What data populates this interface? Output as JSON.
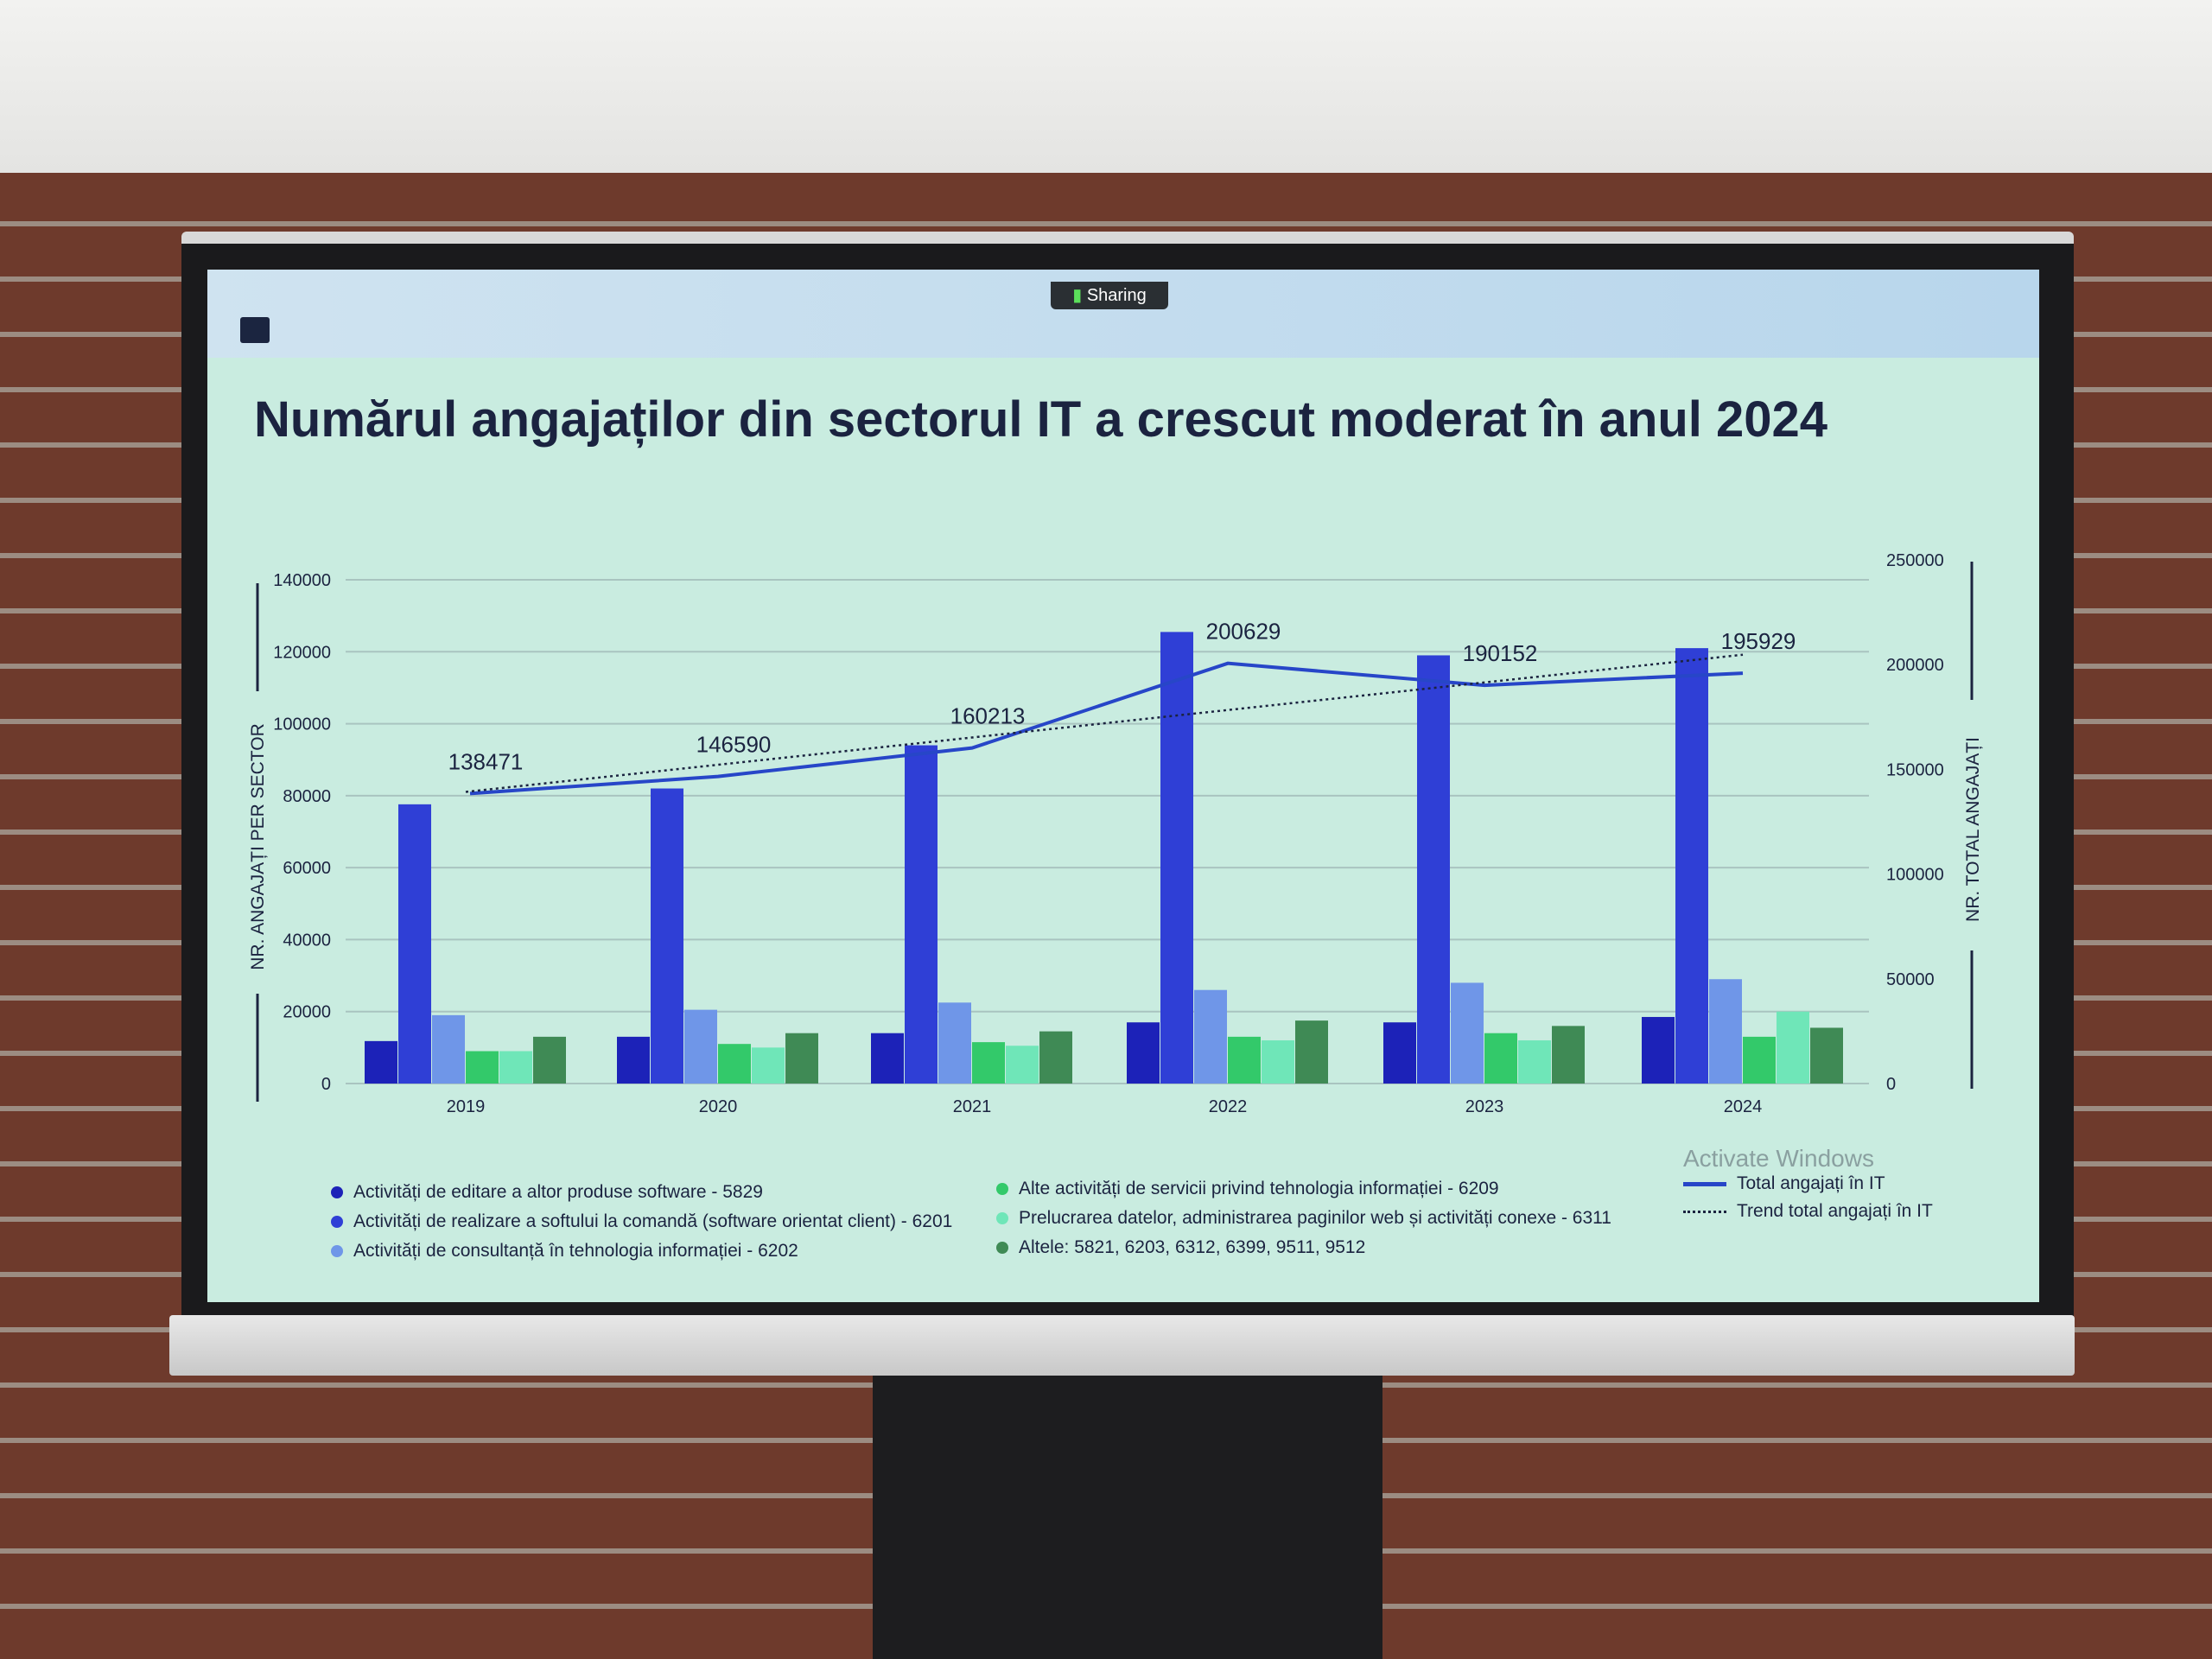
{
  "slide": {
    "sharing_label": "Sharing",
    "title": "Numărul angajaților din sectorul IT a crescut moderat în anul 2024",
    "watermark": "Activate Windows"
  },
  "chart_data": {
    "type": "bar",
    "title": "Numărul angajaților din sectorul IT a crescut moderat în anul 2024",
    "categories": [
      "2019",
      "2020",
      "2021",
      "2022",
      "2023",
      "2024"
    ],
    "ylabel": "NR. ANGAJAȚI PER SECTOR",
    "ylim": [
      0,
      140000
    ],
    "yticks": [
      "0",
      "20000",
      "40000",
      "60000",
      "80000",
      "100000",
      "120000",
      "140000"
    ],
    "y2label": "NR. TOTAL ANGAJAȚI",
    "y2lim": [
      0,
      250000
    ],
    "y2ticks": [
      "0",
      "50000",
      "100000",
      "150000",
      "200000",
      "250000"
    ],
    "grid": true,
    "series": [
      {
        "name": "Activități de editare a altor produse software - 5829",
        "color": "#1c22b8",
        "values": [
          11800,
          13000,
          14000,
          17000,
          17000,
          18500
        ]
      },
      {
        "name": "Activități de realizare a softului la comandă (software orientat client) - 6201",
        "color": "#2f3fd6",
        "values": [
          77600,
          82000,
          94000,
          125500,
          119000,
          121000
        ]
      },
      {
        "name": "Activități de consultanță în tehnologia informației - 6202",
        "color": "#6f96e8",
        "values": [
          19000,
          20500,
          22500,
          26000,
          28000,
          29000
        ]
      },
      {
        "name": "Alte activități de servicii privind tehnologia informației - 6209",
        "color": "#33c96a",
        "values": [
          9000,
          11000,
          11500,
          13000,
          14000,
          13000
        ]
      },
      {
        "name": "Prelucrarea datelor, administrarea paginilor web și activități conexe - 6311",
        "color": "#6fe6b8",
        "values": [
          9000,
          10000,
          10500,
          12000,
          12000,
          20000
        ]
      },
      {
        "name": "Altele: 5821, 6203, 6312, 6399, 9511, 9512",
        "color": "#3f8a55",
        "values": [
          13000,
          14000,
          14500,
          17500,
          16000,
          15500
        ]
      }
    ],
    "line_series": [
      {
        "name": "Total angajați în IT",
        "axis": "right",
        "style": "solid",
        "color": "#2746c8",
        "values": [
          138471,
          146590,
          160213,
          200629,
          190152,
          195929
        ],
        "labels": [
          "138471",
          "146590",
          "160213",
          "200629",
          "190152",
          "195929"
        ]
      },
      {
        "name": "Trend total angajați în IT",
        "axis": "right",
        "style": "dotted",
        "color": "#1b2340"
      }
    ],
    "legend": "bottom"
  }
}
